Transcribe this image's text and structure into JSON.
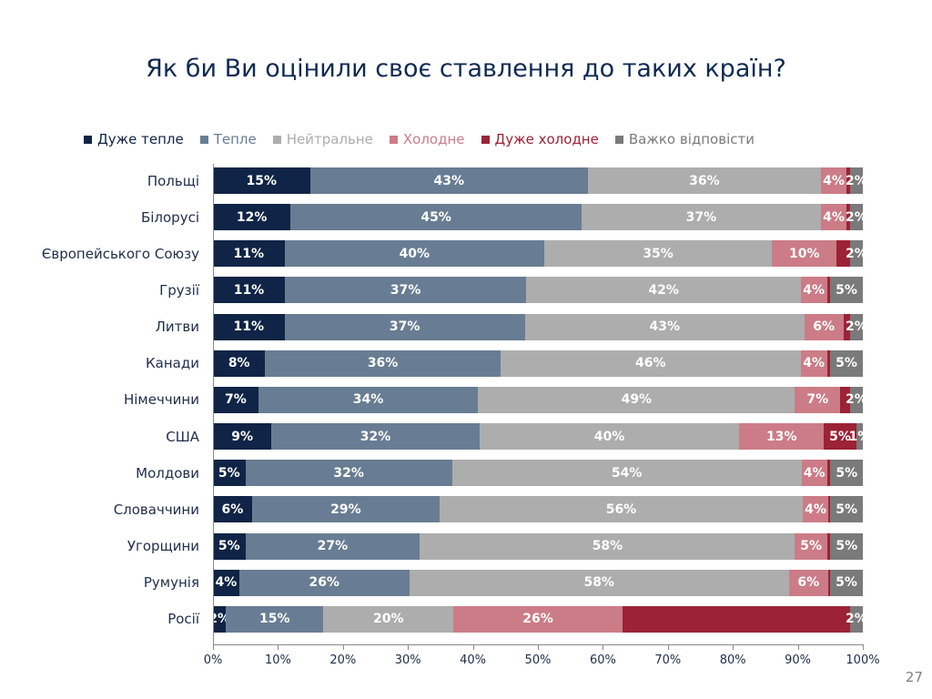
{
  "page": {
    "title": "Як би Ви оцінили своє ставлення до таких країн?",
    "page_number": "27"
  },
  "chart_data": {
    "type": "bar",
    "orientation": "horizontal",
    "stacked": "percent",
    "title": "Як би Ви оцінили своє ставлення до таких країн?",
    "legend_position": "top",
    "categories": [
      "Польщі",
      "Білорусі",
      "Європейського Союзу",
      "Грузії",
      "Литви",
      "Канади",
      "Німеччини",
      "США",
      "Молдови",
      "Словаччини",
      "Угорщини",
      "Румунія",
      "Росії"
    ],
    "series": [
      {
        "name": "Дуже тепле",
        "color": "#0f2446",
        "values": [
          15,
          12,
          11,
          11,
          11,
          8,
          7,
          9,
          5,
          6,
          5,
          4,
          2
        ]
      },
      {
        "name": "Тепле",
        "color": "#687d93",
        "values": [
          43,
          45,
          40,
          37,
          37,
          36,
          34,
          32,
          32,
          29,
          27,
          26,
          15
        ]
      },
      {
        "name": "Нейтральне",
        "color": "#adadad",
        "values": [
          36,
          37,
          35,
          42,
          43,
          46,
          49,
          40,
          54,
          56,
          58,
          58,
          20
        ]
      },
      {
        "name": "Холодне",
        "color": "#cc7c86",
        "values": [
          4,
          4,
          10,
          4,
          6,
          4,
          7,
          13,
          4,
          4,
          5,
          6,
          26
        ]
      },
      {
        "name": "Дуже холодне",
        "color": "#9c2235",
        "values": [
          0.5,
          0.5,
          2,
          0.5,
          1,
          0.5,
          1.5,
          5,
          0.5,
          0.3,
          0.5,
          0.3,
          35
        ]
      },
      {
        "name": "Важко відповісти",
        "color": "#7a7a7a",
        "values": [
          2,
          2,
          2,
          5,
          2,
          5,
          2,
          1,
          5,
          5,
          5,
          5,
          2
        ]
      }
    ],
    "data_labels": [
      [
        "15%",
        "43%",
        "36%",
        "4%",
        "",
        "2%"
      ],
      [
        "12%",
        "45%",
        "37%",
        "4%",
        "",
        "2%"
      ],
      [
        "11%",
        "40%",
        "35%",
        "10%",
        "",
        "2%"
      ],
      [
        "11%",
        "37%",
        "42%",
        "4%",
        "",
        "5%"
      ],
      [
        "11%",
        "37%",
        "43%",
        "6%",
        "",
        "2%"
      ],
      [
        "8%",
        "36%",
        "46%",
        "4%",
        "",
        "5%"
      ],
      [
        "7%",
        "34%",
        "49%",
        "7%",
        "",
        "2%"
      ],
      [
        "9%",
        "32%",
        "40%",
        "13%",
        "5%",
        "1%"
      ],
      [
        "5%",
        "32%",
        "54%",
        "4%",
        "",
        "5%"
      ],
      [
        "6%",
        "29%",
        "56%",
        "4%",
        "",
        "5%"
      ],
      [
        "5%",
        "27%",
        "58%",
        "5%",
        "",
        "5%"
      ],
      [
        "4%",
        "26%",
        "58%",
        "6%",
        "",
        "5%"
      ],
      [
        "2%",
        "15%",
        "20%",
        "26%",
        "",
        "2%"
      ]
    ],
    "x_ticks": [
      "0%",
      "10%",
      "20%",
      "30%",
      "40%",
      "50%",
      "60%",
      "70%",
      "80%",
      "90%",
      "100%"
    ],
    "xlim": [
      0,
      100
    ],
    "grid": false
  }
}
